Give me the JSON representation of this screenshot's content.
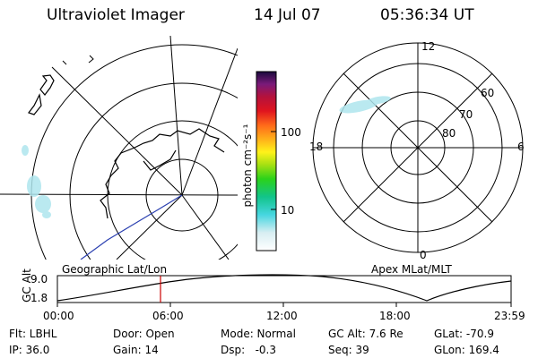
{
  "header": {
    "instrument": "Ultraviolet Imager",
    "date": "14 Jul 07",
    "time": "05:36:34 UT"
  },
  "geo_map": {
    "label": "Geographic Lat/Lon"
  },
  "apex_map": {
    "label": "Apex MLat/MLT",
    "mlt_labels": {
      "top": "12",
      "left": "18",
      "right": "6",
      "bottom": "0"
    },
    "lat_labels": [
      "60",
      "70",
      "80"
    ]
  },
  "colorbar": {
    "unit_label": "photon cm⁻²s⁻¹",
    "ticks": [
      "100",
      "10"
    ]
  },
  "altitude_plot": {
    "ylabel": "GC Alt",
    "ymax_label": "9.0",
    "ymin_label": "1.8",
    "time_ticks": [
      "00:00",
      "06:00",
      "12:00",
      "18:00",
      "23:59"
    ],
    "current_time_marker": "05:36"
  },
  "footer": {
    "flt": "Flt: LBHL",
    "ip": "IP: 36.0",
    "door": "Door: Open",
    "gain": "Gain: 14",
    "mode": "Mode: Normal",
    "dsp": "Dsp:   -0.3",
    "gc_alt": "GC Alt: 7.6 Re",
    "seq": "Seq: 39",
    "glat": "GLat: -70.9",
    "glon": "GLon: 169.4"
  },
  "colors": {
    "marker": "#cc0000",
    "aurora": "#aee6ee",
    "coast_track": "#2a3fb0"
  }
}
